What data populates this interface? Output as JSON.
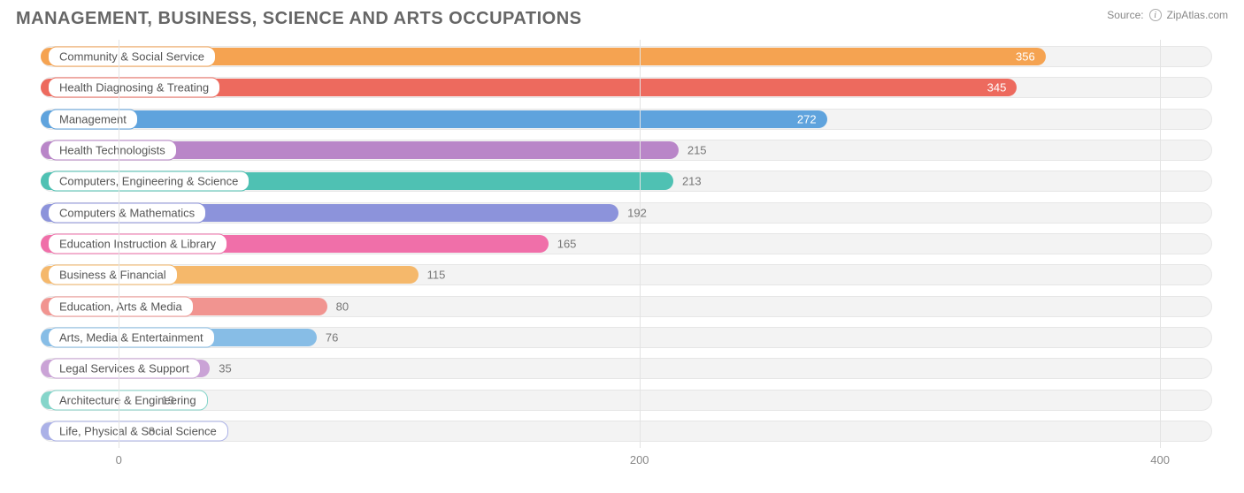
{
  "title": "MANAGEMENT, BUSINESS, SCIENCE AND ARTS OCCUPATIONS",
  "source_label": "Source:",
  "source_name": "ZipAtlas.com",
  "chart": {
    "type": "bar",
    "orientation": "horizontal",
    "background": "#ffffff",
    "track_bg": "#f3f3f3",
    "track_border": "#e6e6e6",
    "grid_color": "#e3e3e3",
    "label_fontsize": 13,
    "value_fontsize": 13,
    "title_fontsize": 20,
    "title_color": "#666666",
    "xlim": [
      -30,
      420
    ],
    "ticks": [
      0,
      200,
      400
    ],
    "bar_radius": 12,
    "rows": [
      {
        "label": "Community & Social Service",
        "value": 356,
        "color": "#f5a351",
        "value_inside": true
      },
      {
        "label": "Health Diagnosing & Treating",
        "value": 345,
        "color": "#ed6a5e",
        "value_inside": true
      },
      {
        "label": "Management",
        "value": 272,
        "color": "#5fa3dd",
        "value_inside": true
      },
      {
        "label": "Health Technologists",
        "value": 215,
        "color": "#b986c8",
        "value_inside": false
      },
      {
        "label": "Computers, Engineering & Science",
        "value": 213,
        "color": "#4fc1b3",
        "value_inside": false
      },
      {
        "label": "Computers & Mathematics",
        "value": 192,
        "color": "#8c93db",
        "value_inside": false
      },
      {
        "label": "Education Instruction & Library",
        "value": 165,
        "color": "#f06fa9",
        "value_inside": false
      },
      {
        "label": "Business & Financial",
        "value": 115,
        "color": "#f5b86b",
        "value_inside": false
      },
      {
        "label": "Education, Arts & Media",
        "value": 80,
        "color": "#f19490",
        "value_inside": false
      },
      {
        "label": "Arts, Media & Entertainment",
        "value": 76,
        "color": "#87bde6",
        "value_inside": false
      },
      {
        "label": "Legal Services & Support",
        "value": 35,
        "color": "#caa3d6",
        "value_inside": false
      },
      {
        "label": "Architecture & Engineering",
        "value": 13,
        "color": "#85d5ca",
        "value_inside": false
      },
      {
        "label": "Life, Physical & Social Science",
        "value": 8,
        "color": "#abb1e7",
        "value_inside": false
      }
    ]
  }
}
